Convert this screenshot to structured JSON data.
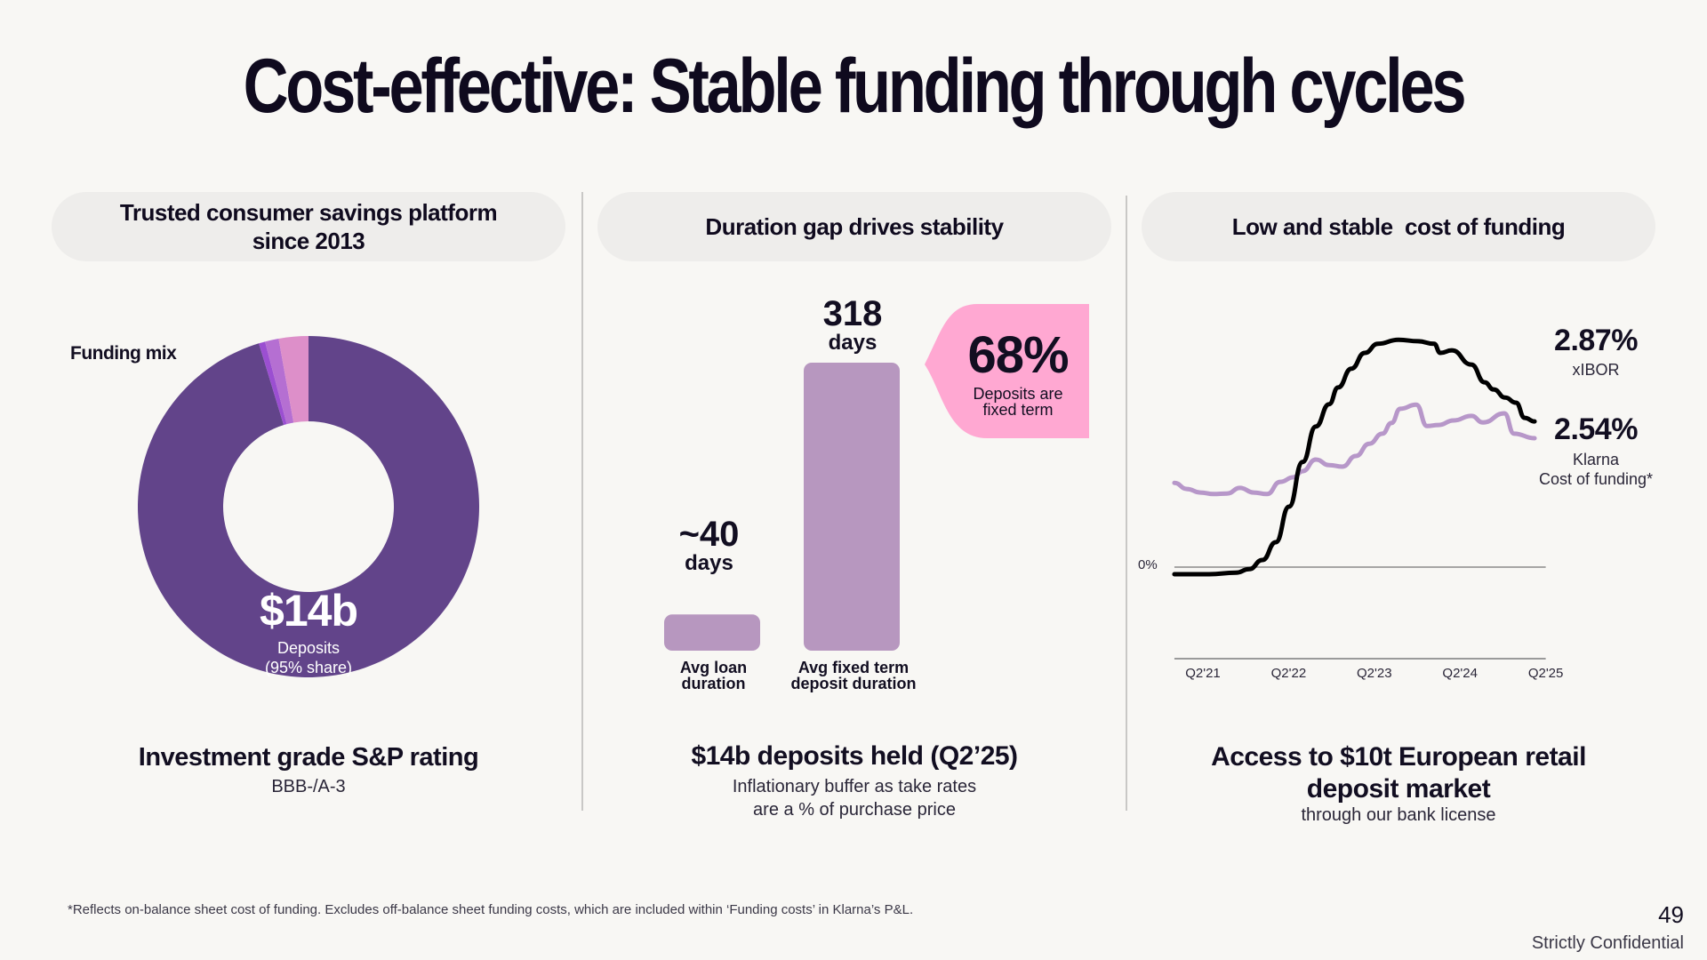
{
  "title": "Cost-effective: Stable funding through cycles",
  "panels": {
    "left": {
      "header": "Trusted consumer savings platform since 2013",
      "funding_mix_label": "Funding mix",
      "donut_value": "$14b",
      "donut_caption_1": "Deposits",
      "donut_caption_2": "(95% share)",
      "footer_title": "Investment grade S&P rating",
      "footer_sub": "BBB-/A-3"
    },
    "middle": {
      "header": "Duration gap drives stability",
      "bar1_value": "~40",
      "bar1_unit": "days",
      "bar1_label_1": "Avg loan",
      "bar1_label_2": "duration",
      "bar2_value": "318",
      "bar2_unit": "days",
      "bar2_label_1": "Avg fixed term",
      "bar2_label_2": "deposit duration",
      "callout_value": "68%",
      "callout_text_1": "Deposits are",
      "callout_text_2": "fixed term",
      "footer_title": "$14b deposits held (Q2’25)",
      "footer_sub_1": "Inflationary buffer as take rates",
      "footer_sub_2": "are a % of purchase price"
    },
    "right": {
      "header": "Low and stable  cost of funding",
      "xibor_value": "2.87%",
      "xibor_label": "xIBOR",
      "klarna_value": "2.54%",
      "klarna_label_1": "Klarna",
      "klarna_label_2": "Cost of funding*",
      "zero_label": "0%",
      "footer_title_1": "Access to $10t European retail",
      "footer_title_2": "deposit market",
      "footer_sub": "through our bank license"
    }
  },
  "footnote": "*Reflects on-balance sheet cost of funding. Excludes off-balance sheet funding costs, which are included within ‘Funding costs’ in Klarna’s P&L.",
  "page_number": "49",
  "confidentiality": "Strictly Confidential",
  "colors": {
    "background": "#f8f7f4",
    "deposits": "#62448a",
    "slice_pink": "#dd8fc9",
    "slice_lilac": "#b56fd2",
    "slice_violet": "#9b4fd1",
    "bars": "#b797bf",
    "callout": "#ffa8d2",
    "xibor_line": "#000000",
    "klarna_line": "#b797c9"
  },
  "chart_data": [
    {
      "type": "pie",
      "title": "Funding mix",
      "donut": true,
      "slices": [
        {
          "name": "Deposits",
          "value": 95.3,
          "color": "#62448a"
        },
        {
          "name": "Other (violet)",
          "value": 0.6,
          "color": "#9b4fd1"
        },
        {
          "name": "Other (lilac)",
          "value": 1.3,
          "color": "#b56fd2"
        },
        {
          "name": "Other (pink)",
          "value": 2.8,
          "color": "#dd8fc9"
        }
      ],
      "center_annotation": "$14b Deposits (95% share)"
    },
    {
      "type": "bar",
      "title": "Duration gap drives stability",
      "categories": [
        "Avg loan duration",
        "Avg fixed term deposit duration"
      ],
      "values": [
        40,
        318
      ],
      "data_labels": [
        "~40 days",
        "318 days"
      ],
      "ylim": [
        0,
        318
      ],
      "annotation": "68% Deposits are fixed term"
    },
    {
      "type": "line",
      "title": "Low and stable  cost of funding",
      "xlabel": "",
      "ylabel": "",
      "x_ticks": [
        "Q2'21",
        "Q2'22",
        "Q2'23",
        "Q2'24",
        "Q2'25"
      ],
      "x_tick_positions": [
        0,
        4,
        8,
        12,
        16
      ],
      "x_unit": "quarters since Q2'21",
      "xlim": [
        -1.33,
        16
      ],
      "ylim": [
        -0.3,
        4.6
      ],
      "reference_line": {
        "label": "0%",
        "value": 0
      },
      "grid": false,
      "series": [
        {
          "name": "xIBOR",
          "end_label": "2.87%",
          "color": "#000000",
          "x": [
            -1.33,
            0.29,
            1.54,
            2.16,
            2.78,
            3.4,
            4.02,
            4.65,
            5.27,
            5.89,
            6.31,
            6.93,
            7.55,
            8.17,
            9.13,
            10.04,
            10.79,
            11.08,
            11.62,
            12.53,
            13.15,
            13.57,
            14.11,
            14.61,
            15.02,
            15.48
          ],
          "values": [
            -0.14,
            -0.14,
            -0.11,
            -0.04,
            0.14,
            0.49,
            1.19,
            2.07,
            2.77,
            3.21,
            3.54,
            3.91,
            4.22,
            4.4,
            4.48,
            4.45,
            4.4,
            4.22,
            4.27,
            3.99,
            3.64,
            3.5,
            3.34,
            3.24,
            2.94,
            2.87
          ]
        },
        {
          "name": "Klarna Cost of funding*",
          "end_label": "2.54%",
          "color": "#b797c9",
          "x": [
            -1.33,
            -0.75,
            -0.12,
            0.5,
            1.12,
            1.74,
            2.37,
            2.99,
            3.61,
            4.23,
            4.65,
            5.27,
            5.89,
            6.51,
            7.14,
            7.76,
            8.38,
            8.8,
            9.21,
            9.96,
            10.46,
            11.0,
            11.7,
            12.53,
            13.07,
            14.07,
            14.52,
            15.48
          ],
          "values": [
            1.66,
            1.54,
            1.47,
            1.44,
            1.45,
            1.56,
            1.47,
            1.44,
            1.68,
            1.77,
            1.89,
            2.12,
            2.01,
            1.98,
            2.19,
            2.43,
            2.63,
            2.84,
            3.12,
            3.2,
            2.78,
            2.8,
            2.89,
            2.98,
            2.85,
            3.03,
            2.63,
            2.54
          ]
        }
      ]
    }
  ]
}
